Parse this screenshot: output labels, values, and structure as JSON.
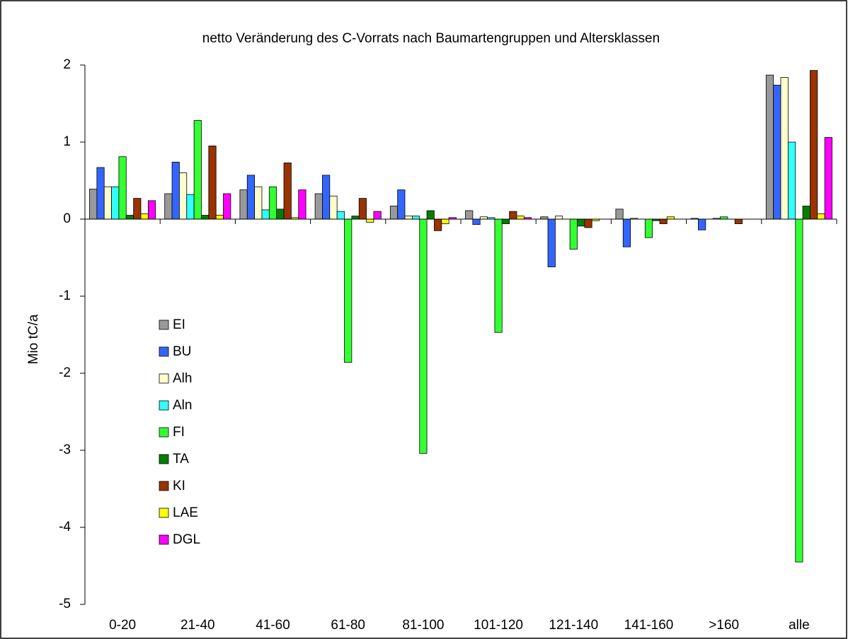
{
  "chart_data": {
    "type": "bar",
    "title": "netto Veränderung des C-Vorrats nach Baumartengruppen und Altersklassen",
    "y_label": "Mio tC/a",
    "categories": [
      "0-20",
      "21-40",
      "41-60",
      "61-80",
      "81-100",
      "101-120",
      "121-140",
      "141-160",
      ">160",
      "alle"
    ],
    "series": [
      {
        "name": "EI",
        "color": "#999999",
        "values": [
          0.39,
          0.33,
          0.38,
          0.33,
          0.17,
          0.11,
          0.03,
          0.13,
          0.01,
          1.87
        ]
      },
      {
        "name": "BU",
        "color": "#3366ff",
        "values": [
          0.67,
          0.74,
          0.57,
          0.57,
          0.38,
          -0.07,
          -0.62,
          -0.36,
          -0.14,
          1.74
        ]
      },
      {
        "name": "Alh",
        "color": "#ffffcc",
        "values": [
          0.42,
          0.6,
          0.42,
          0.3,
          0.04,
          0.03,
          0.04,
          0.01,
          0,
          1.84
        ]
      },
      {
        "name": "Aln",
        "color": "#33ffff",
        "values": [
          0.42,
          0.32,
          0.12,
          0.1,
          0.04,
          0.02,
          0,
          0,
          0.01,
          1.0
        ]
      },
      {
        "name": "FI",
        "color": "#33ff33",
        "values": [
          0.81,
          1.28,
          0.42,
          -1.86,
          -3.04,
          -1.47,
          -0.39,
          -0.24,
          0.03,
          -4.45
        ]
      },
      {
        "name": "TA",
        "color": "#008000",
        "values": [
          0.05,
          0.05,
          0.13,
          0.04,
          0.11,
          -0.06,
          -0.09,
          -0.02,
          0,
          0.17
        ]
      },
      {
        "name": "KI",
        "color": "#993300",
        "values": [
          0.27,
          0.95,
          0.73,
          0.27,
          -0.15,
          0.1,
          -0.11,
          -0.06,
          -0.06,
          1.93
        ]
      },
      {
        "name": "LAE",
        "color": "#ffff00",
        "values": [
          0.07,
          0.05,
          0.02,
          -0.04,
          -0.06,
          0.04,
          -0.02,
          0.03,
          0,
          0.07
        ]
      },
      {
        "name": "DGL",
        "color": "#ff00ff",
        "values": [
          0.24,
          0.33,
          0.38,
          0.1,
          0.02,
          0.02,
          0,
          0,
          0,
          1.06
        ]
      }
    ],
    "ylim": [
      -5,
      2
    ],
    "yticks": [
      -5,
      -4,
      -3,
      -2,
      -1,
      0,
      1,
      2
    ],
    "grid": false
  }
}
